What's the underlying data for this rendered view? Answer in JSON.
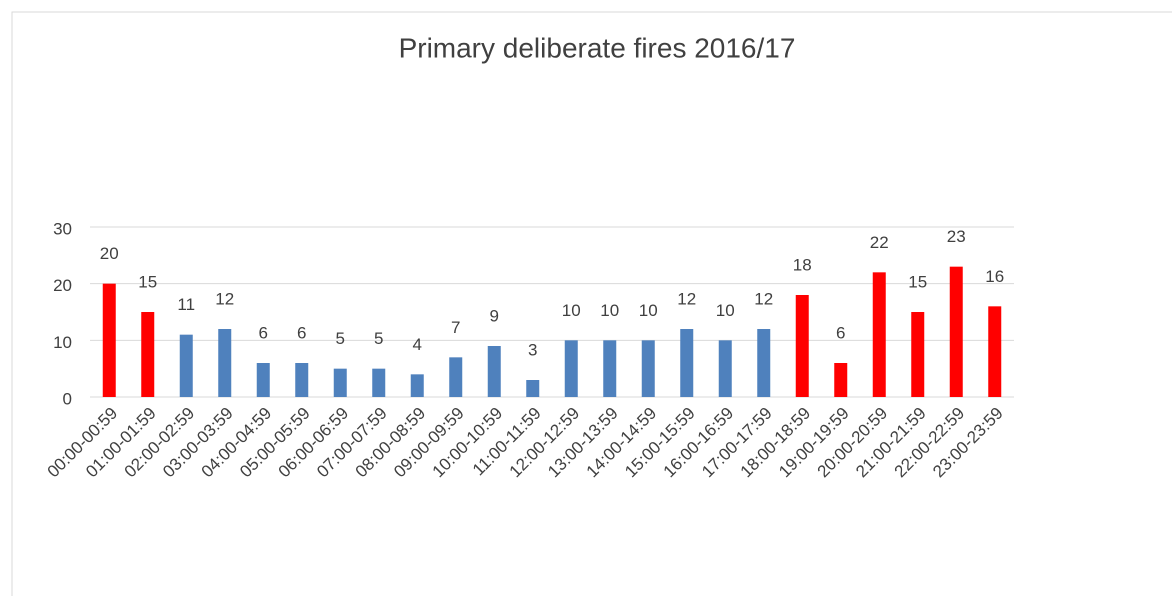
{
  "chart_data": {
    "type": "bar",
    "title": "Primary deliberate fires 2016/17",
    "categories": [
      "00:00-00:59",
      "01:00-01:59",
      "02:00-02:59",
      "03:00-03:59",
      "04:00-04:59",
      "05:00-05:59",
      "06:00-06:59",
      "07:00-07:59",
      "08:00-08:59",
      "09:00-09:59",
      "10:00-10:59",
      "11:00-11:59",
      "12:00-12:59",
      "13:00-13:59",
      "14:00-14:59",
      "15:00-15:59",
      "16:00-16:59",
      "17:00-17:59",
      "18:00-18:59",
      "19:00-19:59",
      "20:00-20:59",
      "21:00-21:59",
      "22:00-22:59",
      "23:00-23:59"
    ],
    "values": [
      20,
      15,
      11,
      12,
      6,
      6,
      5,
      5,
      4,
      7,
      9,
      3,
      10,
      10,
      10,
      12,
      10,
      12,
      18,
      6,
      22,
      15,
      23,
      16
    ],
    "colors": [
      "#ff0000",
      "#ff0000",
      "#4f81bd",
      "#4f81bd",
      "#4f81bd",
      "#4f81bd",
      "#4f81bd",
      "#4f81bd",
      "#4f81bd",
      "#4f81bd",
      "#4f81bd",
      "#4f81bd",
      "#4f81bd",
      "#4f81bd",
      "#4f81bd",
      "#4f81bd",
      "#4f81bd",
      "#4f81bd",
      "#ff0000",
      "#ff0000",
      "#ff0000",
      "#ff0000",
      "#ff0000",
      "#ff0000"
    ],
    "ylim": [
      0,
      30
    ],
    "yticks": [
      0,
      10,
      20,
      30
    ],
    "grid": true
  }
}
